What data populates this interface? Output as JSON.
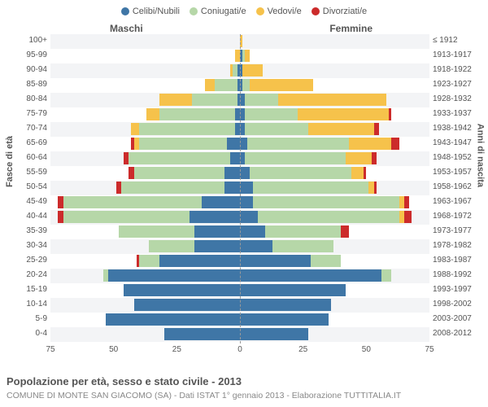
{
  "legend": [
    {
      "label": "Celibi/Nubili",
      "color": "#3f76a6"
    },
    {
      "label": "Coniugati/e",
      "color": "#b6d7a8"
    },
    {
      "label": "Vedovi/e",
      "color": "#f6c24b"
    },
    {
      "label": "Divorziati/e",
      "color": "#cc2b2b"
    }
  ],
  "side_titles": {
    "left": "Maschi",
    "right": "Femmine"
  },
  "axis_labels": {
    "left": "Fasce di età",
    "right": "Anni di nascita"
  },
  "x_axis": {
    "max": 75,
    "ticks": [
      75,
      50,
      25,
      0,
      25,
      50,
      75
    ]
  },
  "title": "Popolazione per età, sesso e stato civile - 2013",
  "subtitle": "COMUNE DI MONTE SAN GIACOMO (SA) - Dati ISTAT 1° gennaio 2013 - Elaborazione TUTTITALIA.IT",
  "colors": {
    "celibi": "#3f76a6",
    "coniugati": "#b6d7a8",
    "vedovi": "#f6c24b",
    "divorziati": "#cc2b2b"
  },
  "rows": [
    {
      "age": "100+",
      "birth": "≤ 1912",
      "m": [
        0,
        0,
        0,
        0
      ],
      "f": [
        0,
        0,
        1,
        0
      ]
    },
    {
      "age": "95-99",
      "birth": "1913-1917",
      "m": [
        0,
        0,
        2,
        0
      ],
      "f": [
        1,
        1,
        2,
        0
      ]
    },
    {
      "age": "90-94",
      "birth": "1918-1922",
      "m": [
        1,
        2,
        1,
        0
      ],
      "f": [
        1,
        0,
        8,
        0
      ]
    },
    {
      "age": "85-89",
      "birth": "1923-1927",
      "m": [
        1,
        9,
        4,
        0
      ],
      "f": [
        1,
        3,
        25,
        0
      ]
    },
    {
      "age": "80-84",
      "birth": "1928-1932",
      "m": [
        1,
        18,
        13,
        0
      ],
      "f": [
        2,
        13,
        43,
        0
      ]
    },
    {
      "age": "75-79",
      "birth": "1933-1937",
      "m": [
        2,
        30,
        5,
        0
      ],
      "f": [
        2,
        21,
        36,
        1
      ]
    },
    {
      "age": "70-74",
      "birth": "1938-1942",
      "m": [
        2,
        38,
        3,
        0
      ],
      "f": [
        2,
        25,
        26,
        2
      ]
    },
    {
      "age": "65-69",
      "birth": "1943-1947",
      "m": [
        5,
        35,
        2,
        1
      ],
      "f": [
        3,
        40,
        17,
        3
      ]
    },
    {
      "age": "60-64",
      "birth": "1948-1952",
      "m": [
        4,
        40,
        0,
        2
      ],
      "f": [
        2,
        40,
        10,
        2
      ]
    },
    {
      "age": "55-59",
      "birth": "1953-1957",
      "m": [
        6,
        36,
        0,
        2
      ],
      "f": [
        4,
        40,
        5,
        1
      ]
    },
    {
      "age": "50-54",
      "birth": "1958-1962",
      "m": [
        6,
        41,
        0,
        2
      ],
      "f": [
        5,
        46,
        2,
        1
      ]
    },
    {
      "age": "45-49",
      "birth": "1963-1967",
      "m": [
        15,
        55,
        0,
        2
      ],
      "f": [
        5,
        58,
        2,
        2
      ]
    },
    {
      "age": "40-44",
      "birth": "1968-1972",
      "m": [
        20,
        50,
        0,
        2
      ],
      "f": [
        7,
        56,
        2,
        3
      ]
    },
    {
      "age": "35-39",
      "birth": "1973-1977",
      "m": [
        18,
        30,
        0,
        0
      ],
      "f": [
        10,
        30,
        0,
        3
      ]
    },
    {
      "age": "30-34",
      "birth": "1978-1982",
      "m": [
        18,
        18,
        0,
        0
      ],
      "f": [
        13,
        24,
        0,
        0
      ]
    },
    {
      "age": "25-29",
      "birth": "1983-1987",
      "m": [
        32,
        8,
        0,
        1
      ],
      "f": [
        28,
        12,
        0,
        0
      ]
    },
    {
      "age": "20-24",
      "birth": "1988-1992",
      "m": [
        52,
        2,
        0,
        0
      ],
      "f": [
        56,
        4,
        0,
        0
      ]
    },
    {
      "age": "15-19",
      "birth": "1993-1997",
      "m": [
        46,
        0,
        0,
        0
      ],
      "f": [
        42,
        0,
        0,
        0
      ]
    },
    {
      "age": "10-14",
      "birth": "1998-2002",
      "m": [
        42,
        0,
        0,
        0
      ],
      "f": [
        36,
        0,
        0,
        0
      ]
    },
    {
      "age": "5-9",
      "birth": "2003-2007",
      "m": [
        53,
        0,
        0,
        0
      ],
      "f": [
        35,
        0,
        0,
        0
      ]
    },
    {
      "age": "0-4",
      "birth": "2008-2012",
      "m": [
        30,
        0,
        0,
        0
      ],
      "f": [
        27,
        0,
        0,
        0
      ]
    }
  ]
}
